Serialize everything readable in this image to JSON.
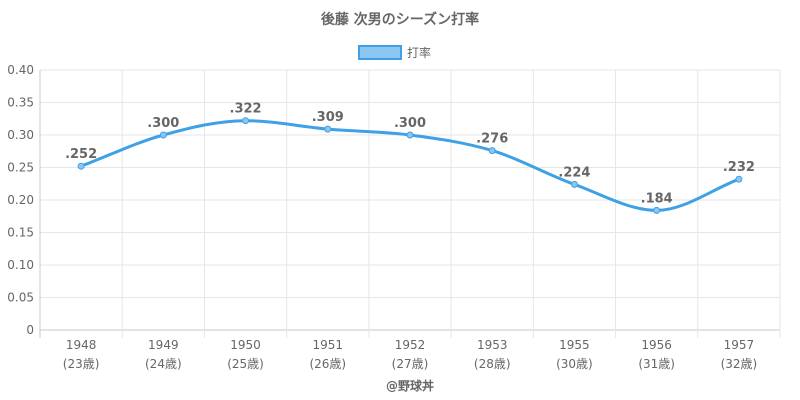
{
  "chart_data": {
    "type": "line",
    "title": "後藤 次男のシーズン打率",
    "legend": {
      "label": "打率",
      "position": "top"
    },
    "categories": [
      "1948",
      "1949",
      "1950",
      "1951",
      "1952",
      "1953",
      "1955",
      "1956",
      "1957"
    ],
    "ages": [
      "(23歳)",
      "(24歳)",
      "(25歳)",
      "(26歳)",
      "(27歳)",
      "(28歳)",
      "(30歳)",
      "(31歳)",
      "(32歳)"
    ],
    "series": [
      {
        "name": "打率",
        "values": [
          0.252,
          0.3,
          0.322,
          0.309,
          0.3,
          0.276,
          0.224,
          0.184,
          0.232
        ],
        "labels": [
          ".252",
          ".300",
          ".322",
          ".309",
          ".300",
          ".276",
          ".224",
          ".184",
          ".232"
        ]
      }
    ],
    "yticks": [
      "0",
      "0.05",
      "0.10",
      "0.15",
      "0.20",
      "0.25",
      "0.30",
      "0.35",
      "0.40"
    ],
    "ylim": [
      0,
      0.4
    ],
    "grid": true,
    "colors": {
      "line": "#3ea1e6",
      "fill": "#8cc6f0",
      "grid": "#e6e6e6",
      "axis": "#c8c8c8",
      "text": "#666666"
    }
  },
  "credit": "@野球丼"
}
